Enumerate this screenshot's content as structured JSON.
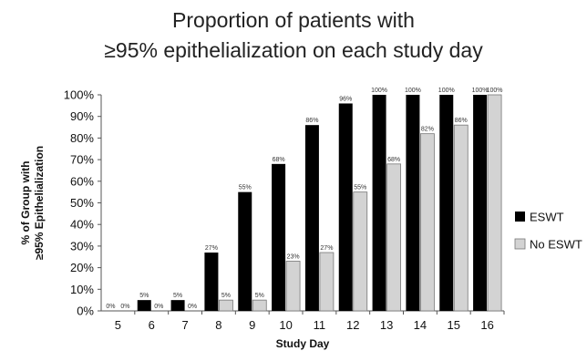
{
  "chart_data": {
    "type": "bar",
    "title_lines": [
      "Proportion of patients with",
      "≥95% epithelialization on each study day"
    ],
    "xlabel": "Study Day",
    "ylabel_lines": [
      "% of Group with",
      "≥95%  Epithelialization"
    ],
    "categories": [
      "5",
      "6",
      "7",
      "8",
      "9",
      "10",
      "11",
      "12",
      "13",
      "14",
      "15",
      "16"
    ],
    "series": [
      {
        "name": "ESWT",
        "color": "#000000",
        "values": [
          0,
          5,
          5,
          27,
          55,
          68,
          86,
          96,
          100,
          100,
          100,
          100
        ],
        "labels": [
          "0%",
          "5%",
          "5%",
          "27%",
          "55%",
          "68%",
          "86%",
          "96%",
          "100%",
          "100%",
          "100%",
          "100%"
        ]
      },
      {
        "name": "No ESWT",
        "color": "#d3d3d3",
        "values": [
          0,
          0,
          0,
          5,
          5,
          23,
          27,
          55,
          68,
          82,
          86,
          100
        ],
        "labels": [
          "0%",
          "0%",
          "0%",
          "5%",
          "5%",
          "23%",
          "27%",
          "55%",
          "68%",
          "82%",
          "86%",
          "100%"
        ]
      }
    ],
    "yticks": [
      "0%",
      "10%",
      "20%",
      "30%",
      "40%",
      "50%",
      "60%",
      "70%",
      "80%",
      "90%",
      "100%"
    ],
    "ylim": [
      0,
      100
    ],
    "grid": false,
    "legend_position": "right"
  }
}
